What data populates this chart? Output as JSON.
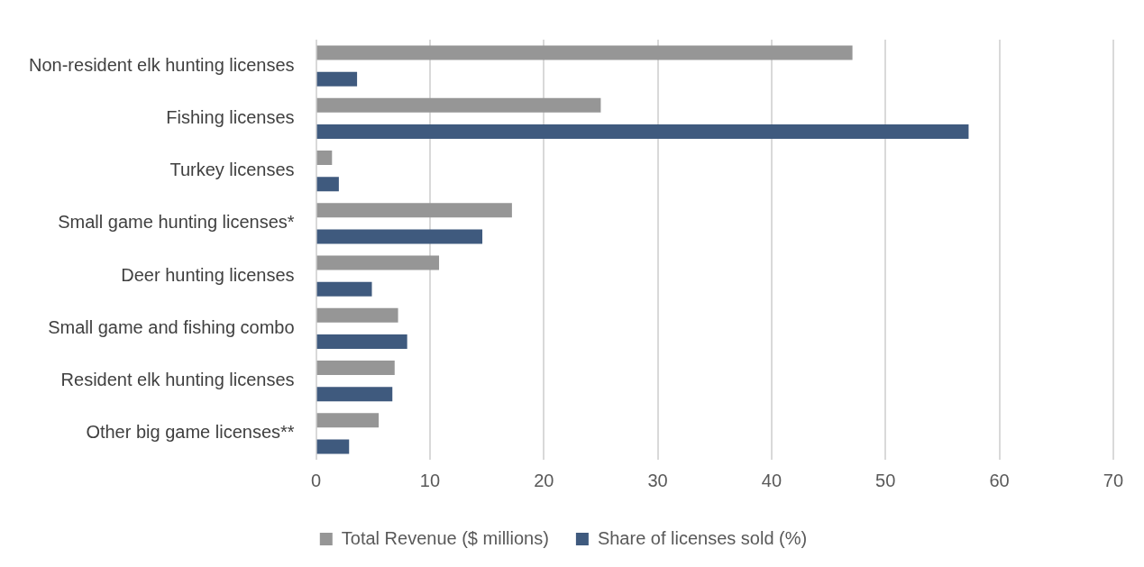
{
  "chart_data": {
    "type": "bar",
    "orientation": "horizontal",
    "categories": [
      "Non-resident elk hunting licenses",
      "Fishing licenses",
      "Turkey licenses",
      "Small game hunting licenses*",
      "Deer hunting licenses",
      "Small game and fishing combo",
      "Resident elk hunting licenses",
      "Other big game licenses**"
    ],
    "series": [
      {
        "name": "Total Revenue ($ millions)",
        "color": "#969696",
        "values": [
          47.1,
          25.0,
          1.4,
          17.2,
          10.8,
          7.2,
          6.9,
          5.5
        ]
      },
      {
        "name": "Share of licenses sold (%)",
        "color": "#3f5a7e",
        "values": [
          3.6,
          57.3,
          2.0,
          14.6,
          4.9,
          8.0,
          6.7,
          2.9
        ]
      }
    ],
    "xlim": [
      0,
      70
    ],
    "xticks": [
      0,
      10,
      20,
      30,
      40,
      50,
      60,
      70
    ],
    "grid": "x",
    "legend": "bottom"
  }
}
